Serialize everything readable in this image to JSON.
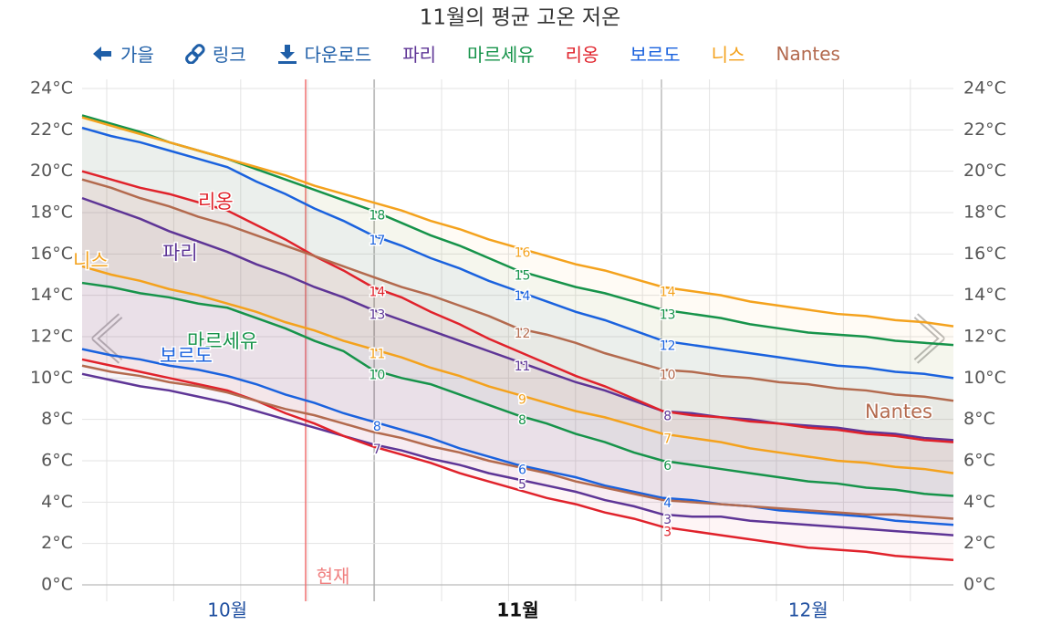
{
  "chart_data": {
    "type": "line",
    "title": "11월의 평균 고온 저온",
    "toolbar": [
      "가을",
      "링크",
      "다운로드"
    ],
    "now_label": "현재",
    "categories": [
      null,
      null,
      null,
      null,
      null,
      "10월",
      null,
      null,
      null,
      null,
      null,
      null,
      null,
      null,
      null,
      "11월",
      null,
      null,
      null,
      null,
      null,
      null,
      null,
      null,
      null,
      "12월",
      null,
      null,
      null,
      null,
      null
    ],
    "ylim": [
      0,
      24
    ],
    "yticks": [
      {
        "value": 0,
        "label": "0°C"
      },
      {
        "value": 2,
        "label": "2°C"
      },
      {
        "value": 4,
        "label": "4°C"
      },
      {
        "value": 6,
        "label": "6°C"
      },
      {
        "value": 8,
        "label": "8°C"
      },
      {
        "value": 10,
        "label": "10°C"
      },
      {
        "value": 12,
        "label": "12°C"
      },
      {
        "value": 14,
        "label": "14°C"
      },
      {
        "value": 16,
        "label": "16°C"
      },
      {
        "value": 18,
        "label": "18°C"
      },
      {
        "value": 20,
        "label": "20°C"
      },
      {
        "value": 22,
        "label": "22°C"
      },
      {
        "value": 24,
        "label": "24°C"
      }
    ],
    "grid": true,
    "series": [
      {
        "name": "파리",
        "color": "#5e3596",
        "high": [
          18.7,
          18.2,
          17.7,
          17.1,
          16.6,
          16.1,
          15.5,
          15.0,
          14.4,
          13.9,
          13.3,
          12.8,
          12.3,
          11.8,
          11.3,
          10.8,
          10.3,
          9.8,
          9.4,
          8.9,
          8.4,
          8.3,
          8.1,
          8.0,
          7.8,
          7.7,
          7.6,
          7.4,
          7.3,
          7.1,
          7.0
        ],
        "low": [
          10.2,
          9.9,
          9.6,
          9.4,
          9.1,
          8.8,
          8.4,
          8.0,
          7.6,
          7.2,
          6.8,
          6.5,
          6.1,
          5.8,
          5.4,
          5.1,
          4.8,
          4.5,
          4.1,
          3.8,
          3.4,
          3.3,
          3.3,
          3.1,
          3.0,
          2.9,
          2.8,
          2.7,
          2.6,
          2.5,
          2.4
        ],
        "high_labels": [
          null,
          null,
          null,
          null,
          null,
          null,
          null,
          null,
          null,
          null,
          "13",
          null,
          null,
          null,
          null,
          "11",
          null,
          null,
          null,
          null,
          "8",
          null,
          null,
          null,
          null,
          null,
          null,
          null,
          null,
          null,
          null
        ],
        "low_labels": [
          null,
          null,
          null,
          null,
          null,
          null,
          null,
          null,
          null,
          null,
          "7",
          null,
          null,
          null,
          null,
          "5",
          null,
          null,
          null,
          null,
          "3",
          null,
          null,
          null,
          null,
          null,
          null,
          null,
          null,
          null,
          null
        ]
      },
      {
        "name": "마르세유",
        "color": "#16934a",
        "high": [
          22.7,
          22.3,
          21.9,
          21.4,
          21.0,
          20.6,
          20.1,
          19.6,
          19.1,
          18.6,
          18.1,
          17.5,
          16.9,
          16.4,
          15.8,
          15.2,
          14.8,
          14.4,
          14.1,
          13.7,
          13.3,
          13.1,
          12.9,
          12.6,
          12.4,
          12.2,
          12.1,
          12.0,
          11.8,
          11.7,
          11.6
        ],
        "low": [
          14.6,
          14.4,
          14.1,
          13.9,
          13.6,
          13.4,
          12.9,
          12.4,
          11.8,
          11.3,
          10.4,
          10.0,
          9.7,
          9.2,
          8.7,
          8.2,
          7.8,
          7.3,
          6.9,
          6.4,
          6.0,
          5.8,
          5.6,
          5.4,
          5.2,
          5.0,
          4.9,
          4.7,
          4.6,
          4.4,
          4.3
        ],
        "high_labels": [
          null,
          null,
          null,
          null,
          null,
          null,
          null,
          null,
          null,
          null,
          "18",
          null,
          null,
          null,
          null,
          "15",
          null,
          null,
          null,
          null,
          "13",
          null,
          null,
          null,
          null,
          null,
          null,
          null,
          null,
          null,
          null
        ],
        "low_labels": [
          null,
          null,
          null,
          null,
          null,
          null,
          null,
          null,
          null,
          null,
          "10",
          null,
          null,
          null,
          null,
          "8",
          null,
          null,
          null,
          null,
          "6",
          null,
          null,
          null,
          null,
          null,
          null,
          null,
          null,
          null,
          null
        ]
      },
      {
        "name": "리옹",
        "color": "#e0222b",
        "high": [
          20.0,
          19.6,
          19.2,
          18.9,
          18.5,
          18.1,
          17.4,
          16.7,
          15.9,
          15.2,
          14.4,
          13.9,
          13.2,
          12.6,
          11.9,
          11.3,
          10.7,
          10.1,
          9.6,
          9.0,
          8.4,
          8.2,
          8.1,
          7.9,
          7.8,
          7.6,
          7.5,
          7.3,
          7.2,
          7.0,
          6.9
        ],
        "low": [
          10.9,
          10.6,
          10.3,
          10.0,
          9.7,
          9.4,
          8.9,
          8.3,
          7.8,
          7.2,
          6.7,
          6.3,
          5.9,
          5.4,
          5.0,
          4.6,
          4.2,
          3.9,
          3.5,
          3.2,
          2.8,
          2.6,
          2.4,
          2.2,
          2.0,
          1.8,
          1.7,
          1.6,
          1.4,
          1.3,
          1.2
        ],
        "high_labels": [
          null,
          null,
          null,
          null,
          null,
          null,
          null,
          null,
          null,
          null,
          "14",
          null,
          null,
          null,
          null,
          null,
          null,
          null,
          null,
          null,
          null,
          null,
          null,
          null,
          null,
          null,
          null,
          null,
          null,
          null,
          null
        ],
        "low_labels": [
          null,
          null,
          null,
          null,
          null,
          null,
          null,
          null,
          null,
          null,
          null,
          null,
          null,
          null,
          null,
          null,
          null,
          null,
          null,
          null,
          "3",
          null,
          null,
          null,
          null,
          null,
          null,
          null,
          null,
          null,
          null
        ]
      },
      {
        "name": "보르도",
        "color": "#1a62de",
        "high": [
          22.1,
          21.7,
          21.4,
          21.0,
          20.6,
          20.2,
          19.5,
          18.9,
          18.2,
          17.6,
          16.9,
          16.4,
          15.8,
          15.3,
          14.7,
          14.2,
          13.7,
          13.2,
          12.8,
          12.3,
          11.8,
          11.6,
          11.4,
          11.2,
          11.0,
          10.8,
          10.6,
          10.5,
          10.3,
          10.2,
          10.0
        ],
        "low": [
          11.4,
          11.1,
          10.9,
          10.6,
          10.4,
          10.1,
          9.7,
          9.2,
          8.8,
          8.3,
          7.9,
          7.5,
          7.1,
          6.6,
          6.2,
          5.8,
          5.5,
          5.2,
          4.8,
          4.5,
          4.2,
          4.1,
          3.9,
          3.8,
          3.6,
          3.5,
          3.4,
          3.3,
          3.1,
          3.0,
          2.9
        ],
        "high_labels": [
          null,
          null,
          null,
          null,
          null,
          null,
          null,
          null,
          null,
          null,
          "17",
          null,
          null,
          null,
          null,
          "14",
          null,
          null,
          null,
          null,
          "12",
          null,
          null,
          null,
          null,
          null,
          null,
          null,
          null,
          null,
          null
        ],
        "low_labels": [
          null,
          null,
          null,
          null,
          null,
          null,
          null,
          null,
          null,
          null,
          "8",
          null,
          null,
          null,
          null,
          "6",
          null,
          null,
          null,
          null,
          "4",
          null,
          null,
          null,
          null,
          null,
          null,
          null,
          null,
          null,
          null
        ]
      },
      {
        "name": "니스",
        "color": "#f4a21d",
        "high": [
          22.6,
          22.2,
          21.8,
          21.4,
          21.0,
          20.6,
          20.2,
          19.8,
          19.3,
          18.9,
          18.5,
          18.1,
          17.6,
          17.2,
          16.7,
          16.3,
          15.9,
          15.5,
          15.2,
          14.8,
          14.4,
          14.2,
          14.0,
          13.7,
          13.5,
          13.3,
          13.1,
          13.0,
          12.8,
          12.7,
          12.5
        ],
        "low": [
          15.4,
          15.0,
          14.7,
          14.3,
          14.0,
          13.6,
          13.2,
          12.7,
          12.3,
          11.8,
          11.4,
          11.0,
          10.5,
          10.1,
          9.6,
          9.2,
          8.8,
          8.4,
          8.1,
          7.7,
          7.3,
          7.1,
          6.9,
          6.6,
          6.4,
          6.2,
          6.0,
          5.9,
          5.7,
          5.6,
          5.4
        ],
        "high_labels": [
          null,
          null,
          null,
          null,
          null,
          null,
          null,
          null,
          null,
          null,
          null,
          null,
          null,
          null,
          null,
          "16",
          null,
          null,
          null,
          null,
          "14",
          null,
          null,
          null,
          null,
          null,
          null,
          null,
          null,
          null,
          null
        ],
        "low_labels": [
          null,
          null,
          null,
          null,
          null,
          null,
          null,
          null,
          null,
          null,
          "11",
          null,
          null,
          null,
          null,
          "9",
          null,
          null,
          null,
          null,
          "7",
          null,
          null,
          null,
          null,
          null,
          null,
          null,
          null,
          null,
          null
        ]
      },
      {
        "name": "Nantes",
        "color": "#b36a4e",
        "high": [
          19.6,
          19.2,
          18.7,
          18.3,
          17.8,
          17.4,
          16.9,
          16.4,
          15.9,
          15.4,
          14.9,
          14.4,
          14.0,
          13.5,
          13.0,
          12.4,
          12.1,
          11.7,
          11.2,
          10.8,
          10.4,
          10.3,
          10.1,
          10.0,
          9.8,
          9.7,
          9.5,
          9.4,
          9.2,
          9.1,
          8.9
        ],
        "low": [
          10.6,
          10.3,
          10.1,
          9.8,
          9.6,
          9.3,
          8.9,
          8.5,
          8.2,
          7.8,
          7.4,
          7.1,
          6.7,
          6.4,
          6.0,
          5.7,
          5.4,
          5.0,
          4.7,
          4.4,
          4.1,
          4.0,
          3.9,
          3.8,
          3.7,
          3.6,
          3.5,
          3.4,
          3.4,
          3.3,
          3.2
        ],
        "high_labels": [
          null,
          null,
          null,
          null,
          null,
          null,
          null,
          null,
          null,
          null,
          null,
          null,
          null,
          null,
          null,
          "12",
          null,
          null,
          null,
          null,
          "10",
          null,
          null,
          null,
          null,
          null,
          null,
          null,
          null,
          null,
          null
        ]
      }
    ]
  }
}
